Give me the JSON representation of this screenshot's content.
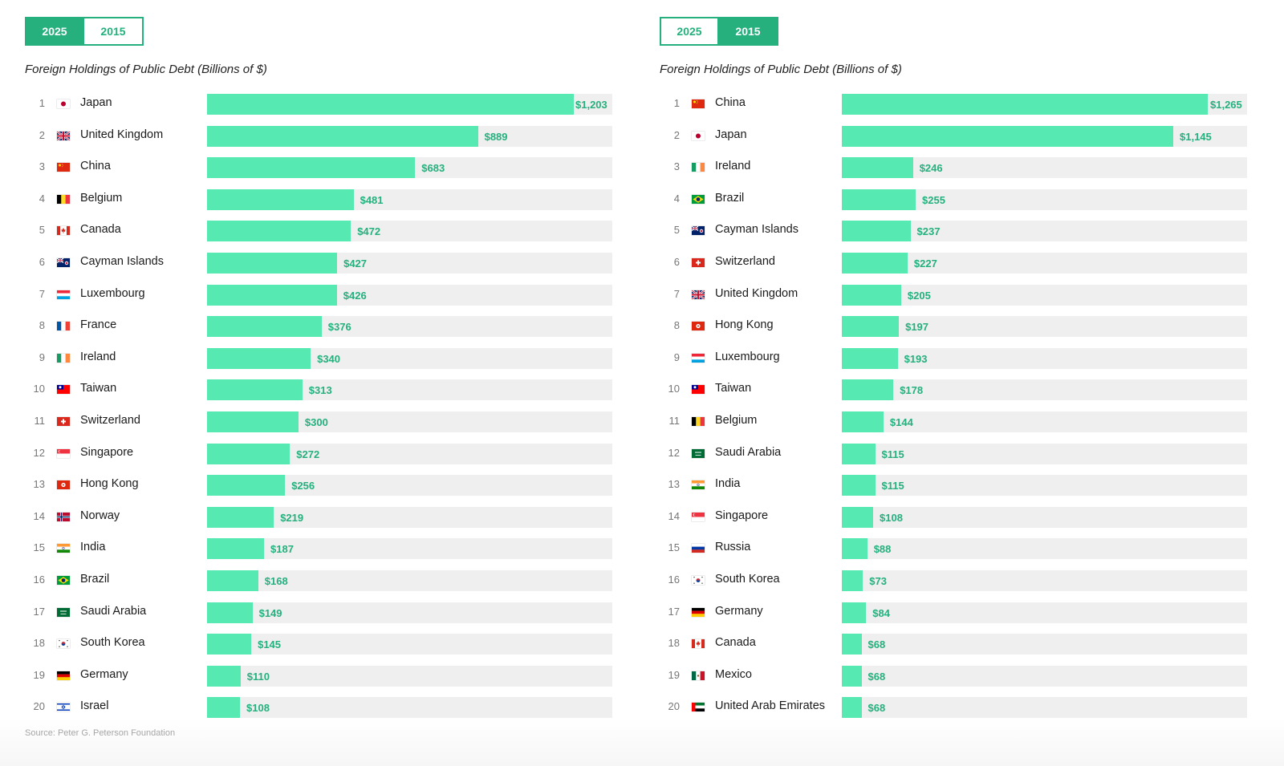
{
  "source": "Source: Peter G. Peterson Foundation",
  "colors": {
    "accent": "#25b07e",
    "bar": "#56e9b2",
    "track": "#efefef"
  },
  "panels": [
    {
      "toggle": [
        {
          "label": "2025",
          "active": true
        },
        {
          "label": "2015",
          "active": false
        }
      ],
      "title": "Foreign Holdings of Public Debt (Billions of $)"
    },
    {
      "toggle": [
        {
          "label": "2025",
          "active": false
        },
        {
          "label": "2015",
          "active": true
        }
      ],
      "title": "Foreign Holdings of Public Debt (Billions of $)"
    }
  ],
  "chart_data": [
    {
      "type": "bar",
      "orientation": "horizontal",
      "title": "Foreign Holdings of Public Debt (Billions of $)",
      "year": "2025",
      "xlim": [
        0,
        1330
      ],
      "ranks": [
        "1",
        "2",
        "3",
        "4",
        "5",
        "6",
        "7",
        "8",
        "9",
        "10",
        "11",
        "12",
        "13",
        "14",
        "15",
        "16",
        "17",
        "18",
        "19",
        "20"
      ],
      "categories": [
        "Japan",
        "United Kingdom",
        "China",
        "Belgium",
        "Canada",
        "Cayman Islands",
        "Luxembourg",
        "France",
        "Ireland",
        "Taiwan",
        "Switzerland",
        "Singapore",
        "Hong Kong",
        "Norway",
        "India",
        "Brazil",
        "Saudi Arabia",
        "South Korea",
        "Germany",
        "Israel"
      ],
      "flags": [
        "japan-flag",
        "uk-flag",
        "china-flag",
        "belgium-flag",
        "canada-flag",
        "cayman-islands-flag",
        "luxembourg-flag",
        "france-flag",
        "ireland-flag",
        "taiwan-flag",
        "switzerland-flag",
        "singapore-flag",
        "hong-kong-flag",
        "norway-flag",
        "india-flag",
        "brazil-flag",
        "saudi-arabia-flag",
        "south-korea-flag",
        "germany-flag",
        "israel-flag"
      ],
      "values": [
        1203,
        889,
        683,
        481,
        472,
        427,
        426,
        376,
        340,
        313,
        300,
        272,
        256,
        219,
        187,
        168,
        149,
        145,
        110,
        108
      ],
      "labels": [
        "$1,203",
        "$889",
        "$683",
        "$481",
        "$472",
        "$427",
        "$426",
        "$376",
        "$340",
        "$313",
        "$300",
        "$272",
        "$256",
        "$219",
        "$187",
        "$168",
        "$149",
        "$145",
        "$110",
        "$108"
      ]
    },
    {
      "type": "bar",
      "orientation": "horizontal",
      "title": "Foreign Holdings of Public Debt (Billions of $)",
      "year": "2015",
      "xlim": [
        0,
        1400
      ],
      "ranks": [
        "1",
        "2",
        "3",
        "4",
        "5",
        "6",
        "7",
        "8",
        "9",
        "10",
        "11",
        "12",
        "13",
        "14",
        "15",
        "16",
        "17",
        "18",
        "19",
        "20"
      ],
      "categories": [
        "China",
        "Japan",
        "Ireland",
        "Brazil",
        "Cayman Islands",
        "Switzerland",
        "United Kingdom",
        "Hong Kong",
        "Luxembourg",
        "Taiwan",
        "Belgium",
        "Saudi Arabia",
        "India",
        "Singapore",
        "Russia",
        "South Korea",
        "Germany",
        "Canada",
        "Mexico",
        "United Arab Emirates"
      ],
      "flags": [
        "china-flag",
        "japan-flag",
        "ireland-flag",
        "brazil-flag",
        "cayman-islands-flag",
        "switzerland-flag",
        "uk-flag",
        "hong-kong-flag",
        "luxembourg-flag",
        "taiwan-flag",
        "belgium-flag",
        "saudi-arabia-flag",
        "india-flag",
        "singapore-flag",
        "russia-flag",
        "south-korea-flag",
        "germany-flag",
        "canada-flag",
        "mexico-flag",
        "uae-flag"
      ],
      "values": [
        1265,
        1145,
        246,
        255,
        237,
        227,
        205,
        197,
        193,
        178,
        144,
        115,
        115,
        108,
        88,
        73,
        84,
        68,
        68,
        68
      ],
      "labels": [
        "$1,265",
        "$1,145",
        "$246",
        "$255",
        "$237",
        "$227",
        "$205",
        "$197",
        "$193",
        "$178",
        "$144",
        "$115",
        "$115",
        "$108",
        "$88",
        "$73",
        "$84",
        "$68",
        "$68",
        "$68"
      ]
    }
  ]
}
